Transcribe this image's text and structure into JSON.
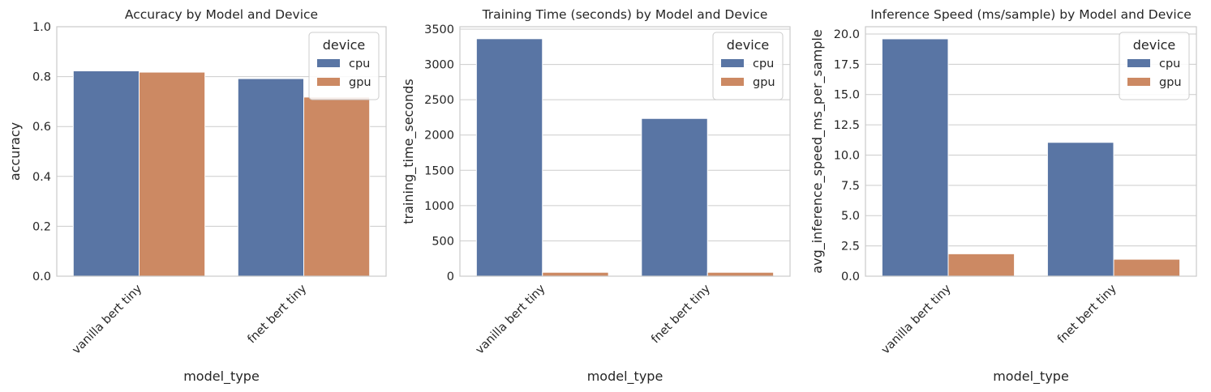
{
  "chart_data": [
    {
      "type": "bar",
      "title": "Accuracy by Model and Device",
      "xlabel": "model_type",
      "ylabel": "accuracy",
      "categories": [
        "vanilla bert tiny",
        "fnet bert tiny"
      ],
      "series": [
        {
          "name": "cpu",
          "values": [
            0.823,
            0.792
          ]
        },
        {
          "name": "gpu",
          "values": [
            0.818,
            0.718
          ]
        }
      ],
      "ylim": [
        0,
        1.0
      ],
      "yticks": [
        "0.0",
        "0.2",
        "0.4",
        "0.6",
        "0.8",
        "1.0"
      ],
      "ytick_values": [
        0,
        0.2,
        0.4,
        0.6,
        0.8,
        1.0
      ],
      "grid": "y",
      "legend": {
        "title": "device",
        "position": "top-right"
      }
    },
    {
      "type": "bar",
      "title": "Training Time (seconds) by Model and Device",
      "xlabel": "model_type",
      "ylabel": "training_time_seconds",
      "categories": [
        "vanilla bert tiny",
        "fnet bert tiny"
      ],
      "series": [
        {
          "name": "cpu",
          "values": [
            3365,
            2235
          ]
        },
        {
          "name": "gpu",
          "values": [
            55,
            55
          ]
        }
      ],
      "ylim": [
        0,
        3535
      ],
      "yticks": [
        "0",
        "500",
        "1000",
        "1500",
        "2000",
        "2500",
        "3000",
        "3500"
      ],
      "ytick_values": [
        0,
        500,
        1000,
        1500,
        2000,
        2500,
        3000,
        3500
      ],
      "grid": "y",
      "legend": {
        "title": "device",
        "position": "top-right"
      }
    },
    {
      "type": "bar",
      "title": "Inference Speed (ms/sample) by Model and Device",
      "xlabel": "model_type",
      "ylabel": "avg_inference_speed_ms_per_sample",
      "categories": [
        "vanilla bert tiny",
        "fnet bert tiny"
      ],
      "series": [
        {
          "name": "cpu",
          "values": [
            19.6,
            11.05
          ]
        },
        {
          "name": "gpu",
          "values": [
            1.85,
            1.4
          ]
        }
      ],
      "ylim": [
        0,
        20.6
      ],
      "yticks": [
        "0.0",
        "2.5",
        "5.0",
        "7.5",
        "10.0",
        "12.5",
        "15.0",
        "17.5",
        "20.0"
      ],
      "ytick_values": [
        0,
        2.5,
        5,
        7.5,
        10,
        12.5,
        15,
        17.5,
        20
      ],
      "grid": "y",
      "legend": {
        "title": "device",
        "position": "top-right"
      }
    }
  ],
  "colors": {
    "cpu": "#5975a4",
    "gpu": "#cc8963",
    "grid": "#cccccc",
    "spine": "#cccccc",
    "text": "#262626"
  }
}
